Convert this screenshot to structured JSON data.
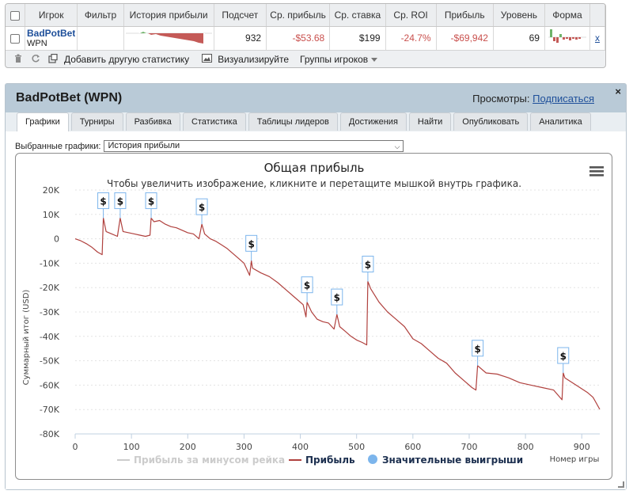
{
  "stats_table": {
    "columns": [
      "Игрок",
      "Фильтр",
      "История прибыли",
      "Подсчет",
      "Ср. прибыль",
      "Ср. ставка",
      "Ср. ROI",
      "Прибыль",
      "Уровень",
      "Форма"
    ],
    "row": {
      "player_name": "BadPotBet",
      "network": "WPN",
      "filter": "",
      "count": "932",
      "avg_profit": "-$53.68",
      "avg_stake": "$199",
      "avg_roi": "-24.7%",
      "profit": "-$69,942",
      "level": "69",
      "remove_label": "x"
    },
    "toolbar": {
      "add_stat": "Добавить другую статистику",
      "visualize": "Визуализируйте",
      "player_groups": "Группы игроков"
    }
  },
  "panel": {
    "title": "BadPotBet (WPN)",
    "views_label": "Просмотры:",
    "subscribe_link": "Подписаться",
    "close_label": "×",
    "tabs": [
      "Графики",
      "Турниры",
      "Разбивка",
      "Статистика",
      "Таблицы лидеров",
      "Достижения",
      "Найти",
      "Опубликовать",
      "Аналитика"
    ],
    "selected_charts_label": "Выбранные графики:",
    "selected_chart": "История прибыли"
  },
  "icons": {
    "trash": "trash-icon",
    "refresh": "refresh-icon",
    "external": "external-link-icon",
    "image": "image-icon",
    "menu": "hamburger-menu-icon",
    "close": "close-icon",
    "dollar_marker": "dollar-marker-icon"
  },
  "colors": {
    "profit_line": "#b0413e",
    "rake_line": "#cccccc",
    "big_win_marker": "#7cb5ec",
    "link": "#1e4f9a",
    "negative": "#c9504d",
    "panel_header": "#b9cad7"
  },
  "chart_data": {
    "type": "line",
    "title": "Общая прибыль",
    "subtitle": "Чтобы увеличить изображение, кликните и перетащите мышкой внутрь графика.",
    "xlabel": "Номер игры",
    "ylabel": "Суммарный итог (USD)",
    "xlim": [
      0,
      932
    ],
    "ylim": [
      -80000,
      20000
    ],
    "x_ticks": [
      0,
      100,
      200,
      300,
      400,
      500,
      600,
      700,
      800,
      900
    ],
    "x_tick_labels": [
      "0",
      "100",
      "200",
      "300",
      "400",
      "500",
      "600",
      "700",
      "800",
      "900"
    ],
    "y_ticks": [
      20000,
      10000,
      0,
      -10000,
      -20000,
      -30000,
      -40000,
      -50000,
      -60000,
      -70000,
      -80000
    ],
    "y_tick_labels": [
      "20K",
      "10K",
      "0",
      "-10K",
      "-20K",
      "-30K",
      "-40K",
      "-50K",
      "-60K",
      "-70K",
      "-80K"
    ],
    "grid": true,
    "legend_position": "bottom",
    "legend": [
      "Прибыль за минусом рейка",
      "Прибыль",
      "Значительные выигрыши"
    ],
    "series": [
      {
        "name": "Прибыль",
        "x": [
          0,
          10,
          20,
          30,
          40,
          48,
          50,
          55,
          65,
          75,
          80,
          85,
          95,
          105,
          115,
          125,
          133,
          135,
          140,
          150,
          160,
          170,
          180,
          190,
          200,
          210,
          220,
          225,
          230,
          240,
          250,
          260,
          270,
          280,
          290,
          300,
          310,
          313,
          315,
          330,
          345,
          360,
          375,
          390,
          405,
          410,
          412,
          420,
          430,
          440,
          450,
          460,
          465,
          470,
          480,
          490,
          500,
          510,
          518,
          520,
          525,
          540,
          555,
          570,
          585,
          600,
          615,
          630,
          645,
          660,
          675,
          690,
          705,
          712,
          715,
          730,
          750,
          770,
          790,
          810,
          830,
          850,
          865,
          867,
          870,
          890,
          910,
          920,
          925,
          932
        ],
        "values": [
          0,
          -800,
          -2000,
          -3500,
          -5500,
          -6500,
          8500,
          3000,
          2000,
          1000,
          8500,
          3000,
          2500,
          2000,
          1500,
          1000,
          1500,
          8500,
          7000,
          7500,
          6000,
          5000,
          4500,
          3500,
          2500,
          2000,
          0,
          6000,
          2000,
          0,
          -1000,
          -2500,
          -4000,
          -6000,
          -8000,
          -10000,
          -15000,
          -9000,
          -12000,
          -14000,
          -15500,
          -18000,
          -21000,
          -24000,
          -27000,
          -32000,
          -26000,
          -30000,
          -33000,
          -34000,
          -34500,
          -37000,
          -31000,
          -36000,
          -38000,
          -40000,
          -41500,
          -42500,
          -43500,
          -17500,
          -20500,
          -26000,
          -30000,
          -33000,
          -36000,
          -41000,
          -43000,
          -46000,
          -49000,
          -51000,
          -55000,
          -58000,
          -61000,
          -62000,
          -52000,
          -55000,
          -55500,
          -57000,
          -59000,
          -60000,
          -61000,
          -62000,
          -66000,
          -55000,
          -57000,
          -60000,
          -63000,
          -65000,
          -67000,
          -69942
        ]
      },
      {
        "name": "Значительные выигрыши",
        "x": [
          50,
          80,
          135,
          225,
          313,
          412,
          465,
          520,
          715,
          867
        ],
        "values": [
          8500,
          8500,
          8500,
          6000,
          -9000,
          -26000,
          -31000,
          -17500,
          -52000,
          -55000
        ]
      }
    ]
  }
}
